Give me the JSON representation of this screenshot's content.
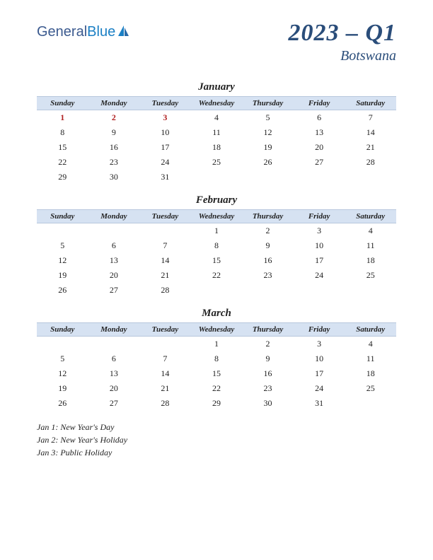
{
  "logo": {
    "part1": "General",
    "part2": "Blue"
  },
  "title": {
    "main": "2023 – Q1",
    "sub": "Botswana"
  },
  "colors": {
    "header_bg": "#d6e2f2",
    "header_border": "#b8c7dd",
    "title_color": "#2a4d7a",
    "text_color": "#222222",
    "holiday_color": "#b02020",
    "logo_general": "#3b5a8f",
    "logo_blue": "#1a7fc4"
  },
  "day_headers": [
    "Sunday",
    "Monday",
    "Tuesday",
    "Wednesday",
    "Thursday",
    "Friday",
    "Saturday"
  ],
  "months": [
    {
      "name": "January",
      "weeks": [
        [
          {
            "d": "1",
            "h": true
          },
          {
            "d": "2",
            "h": true
          },
          {
            "d": "3",
            "h": true
          },
          {
            "d": "4"
          },
          {
            "d": "5"
          },
          {
            "d": "6"
          },
          {
            "d": "7"
          }
        ],
        [
          {
            "d": "8"
          },
          {
            "d": "9"
          },
          {
            "d": "10"
          },
          {
            "d": "11"
          },
          {
            "d": "12"
          },
          {
            "d": "13"
          },
          {
            "d": "14"
          }
        ],
        [
          {
            "d": "15"
          },
          {
            "d": "16"
          },
          {
            "d": "17"
          },
          {
            "d": "18"
          },
          {
            "d": "19"
          },
          {
            "d": "20"
          },
          {
            "d": "21"
          }
        ],
        [
          {
            "d": "22"
          },
          {
            "d": "23"
          },
          {
            "d": "24"
          },
          {
            "d": "25"
          },
          {
            "d": "26"
          },
          {
            "d": "27"
          },
          {
            "d": "28"
          }
        ],
        [
          {
            "d": "29"
          },
          {
            "d": "30"
          },
          {
            "d": "31"
          },
          {
            "d": ""
          },
          {
            "d": ""
          },
          {
            "d": ""
          },
          {
            "d": ""
          }
        ]
      ]
    },
    {
      "name": "February",
      "weeks": [
        [
          {
            "d": ""
          },
          {
            "d": ""
          },
          {
            "d": ""
          },
          {
            "d": "1"
          },
          {
            "d": "2"
          },
          {
            "d": "3"
          },
          {
            "d": "4"
          }
        ],
        [
          {
            "d": "5"
          },
          {
            "d": "6"
          },
          {
            "d": "7"
          },
          {
            "d": "8"
          },
          {
            "d": "9"
          },
          {
            "d": "10"
          },
          {
            "d": "11"
          }
        ],
        [
          {
            "d": "12"
          },
          {
            "d": "13"
          },
          {
            "d": "14"
          },
          {
            "d": "15"
          },
          {
            "d": "16"
          },
          {
            "d": "17"
          },
          {
            "d": "18"
          }
        ],
        [
          {
            "d": "19"
          },
          {
            "d": "20"
          },
          {
            "d": "21"
          },
          {
            "d": "22"
          },
          {
            "d": "23"
          },
          {
            "d": "24"
          },
          {
            "d": "25"
          }
        ],
        [
          {
            "d": "26"
          },
          {
            "d": "27"
          },
          {
            "d": "28"
          },
          {
            "d": ""
          },
          {
            "d": ""
          },
          {
            "d": ""
          },
          {
            "d": ""
          }
        ]
      ]
    },
    {
      "name": "March",
      "weeks": [
        [
          {
            "d": ""
          },
          {
            "d": ""
          },
          {
            "d": ""
          },
          {
            "d": "1"
          },
          {
            "d": "2"
          },
          {
            "d": "3"
          },
          {
            "d": "4"
          }
        ],
        [
          {
            "d": "5"
          },
          {
            "d": "6"
          },
          {
            "d": "7"
          },
          {
            "d": "8"
          },
          {
            "d": "9"
          },
          {
            "d": "10"
          },
          {
            "d": "11"
          }
        ],
        [
          {
            "d": "12"
          },
          {
            "d": "13"
          },
          {
            "d": "14"
          },
          {
            "d": "15"
          },
          {
            "d": "16"
          },
          {
            "d": "17"
          },
          {
            "d": "18"
          }
        ],
        [
          {
            "d": "19"
          },
          {
            "d": "20"
          },
          {
            "d": "21"
          },
          {
            "d": "22"
          },
          {
            "d": "23"
          },
          {
            "d": "24"
          },
          {
            "d": "25"
          }
        ],
        [
          {
            "d": "26"
          },
          {
            "d": "27"
          },
          {
            "d": "28"
          },
          {
            "d": "29"
          },
          {
            "d": "30"
          },
          {
            "d": "31"
          },
          {
            "d": ""
          }
        ]
      ]
    }
  ],
  "holidays": [
    "Jan 1: New Year's Day",
    "Jan 2: New Year's Holiday",
    "Jan 3: Public Holiday"
  ]
}
